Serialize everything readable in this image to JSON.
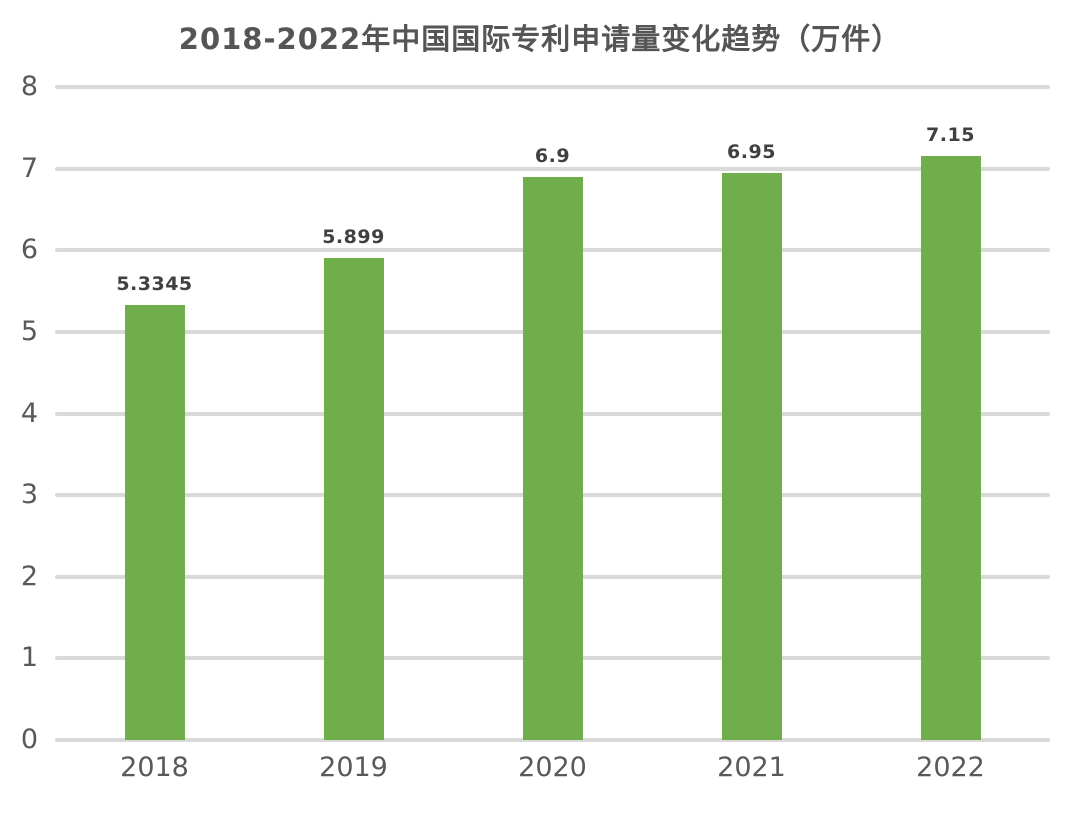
{
  "chart_data": {
    "type": "bar",
    "title": "2018-2022年中国国际专利申请量变化趋势（万件）",
    "categories": [
      "2018",
      "2019",
      "2020",
      "2021",
      "2022"
    ],
    "values": [
      5.3345,
      5.899,
      6.9,
      6.95,
      7.15
    ],
    "value_labels": [
      "5.3345",
      "5.899",
      "6.9",
      "6.95",
      "7.15"
    ],
    "xlabel": "",
    "ylabel": "",
    "ylim": [
      0,
      8
    ],
    "yticks": [
      0,
      1,
      2,
      3,
      4,
      5,
      6,
      7,
      8
    ],
    "grid": true,
    "legend": "none",
    "colors": {
      "bar": "#6fae4b",
      "gridline": "#d9d9d9",
      "axis_text": "#595959",
      "value_label_text": "#404040",
      "title_text": "#555555",
      "background": "#ffffff"
    }
  }
}
